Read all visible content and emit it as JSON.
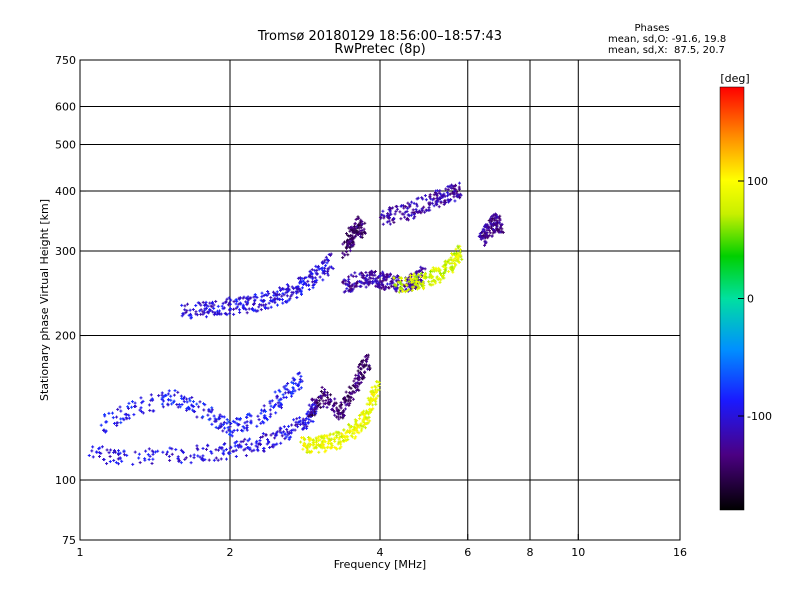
{
  "chart_data": {
    "type": "scatter",
    "title": "Tromsø 20180129 18:56:00–18:57:43",
    "subtitle": "RwPretec (8p)",
    "xlabel": "Frequency [MHz]",
    "ylabel": "Stationary phase Virtual Height [km]",
    "x_scale": "log2",
    "y_scale": "log",
    "xlim": [
      1,
      16
    ],
    "ylim": [
      75,
      750
    ],
    "x_ticks": [
      "1",
      "2",
      "4",
      "6",
      "8",
      "10",
      "16"
    ],
    "x_tick_values": [
      1,
      2,
      4,
      6,
      8,
      10,
      16
    ],
    "y_ticks": [
      "75",
      "100",
      "200",
      "300",
      "400",
      "500",
      "600",
      "750"
    ],
    "y_tick_values": [
      75,
      100,
      200,
      300,
      400,
      500,
      600,
      750
    ],
    "x_gridlines": [
      2,
      4,
      6,
      8,
      10
    ],
    "y_gridlines": [
      100,
      200,
      300,
      400,
      500,
      600
    ],
    "colorbar": {
      "label": "[deg]",
      "ticks": [
        "100",
        "0",
        "-100"
      ],
      "tick_values": [
        100,
        0,
        -100
      ],
      "range": [
        -180,
        180
      ]
    },
    "phase_stats": {
      "heading": "Phases",
      "line1": "mean, sd,O: -91.6, 19.8",
      "line2": "mean, sd,X:  87.5, 20.7"
    },
    "traces": [
      {
        "x": [
          1.03,
          1.3,
          1.7,
          2.0,
          2.3,
          2.6,
          2.85,
          3.0
        ],
        "y": [
          113,
          112,
          113,
          115,
          119,
          125,
          133,
          145
        ],
        "phase": -100
      },
      {
        "x": [
          1.1,
          1.3,
          1.55,
          1.8,
          2.0,
          2.3,
          2.55,
          2.8
        ],
        "y": [
          130,
          142,
          148,
          138,
          128,
          135,
          150,
          165
        ],
        "phase": -90
      },
      {
        "x": [
          2.8,
          2.95,
          3.1,
          3.3,
          3.5,
          3.7,
          3.85,
          3.95
        ],
        "y": [
          118,
          118,
          119,
          121,
          126,
          133,
          145,
          158
        ],
        "phase": 90
      },
      {
        "x": [
          2.9,
          3.1,
          3.3,
          3.5,
          3.65,
          3.8
        ],
        "y": [
          140,
          150,
          138,
          150,
          165,
          180
        ],
        "phase": -140
      },
      {
        "x": [
          1.6,
          1.8,
          2.0,
          2.2,
          2.4,
          2.6,
          2.8,
          3.0,
          3.2
        ],
        "y": [
          225,
          228,
          230,
          232,
          238,
          245,
          255,
          268,
          285
        ],
        "phase": -100
      },
      {
        "x": [
          3.4,
          3.6,
          3.8,
          4.0,
          4.2,
          4.5,
          4.7,
          4.9
        ],
        "y": [
          255,
          260,
          262,
          262,
          258,
          255,
          260,
          268
        ],
        "phase": -120
      },
      {
        "x": [
          4.3,
          4.7,
          5.0,
          5.3,
          5.6,
          5.8
        ],
        "y": [
          255,
          258,
          262,
          270,
          282,
          300
        ],
        "phase": 80
      },
      {
        "x": [
          4.0,
          4.4,
          4.8,
          5.2,
          5.5,
          5.8
        ],
        "y": [
          350,
          360,
          370,
          385,
          395,
          400
        ],
        "phase": -120
      },
      {
        "x": [
          3.4,
          3.5,
          3.6,
          3.7
        ],
        "y": [
          300,
          320,
          340,
          330
        ],
        "phase": -140
      },
      {
        "x": [
          6.4,
          6.6,
          6.8,
          7.0
        ],
        "y": [
          320,
          330,
          345,
          340
        ],
        "phase": -130
      }
    ]
  }
}
